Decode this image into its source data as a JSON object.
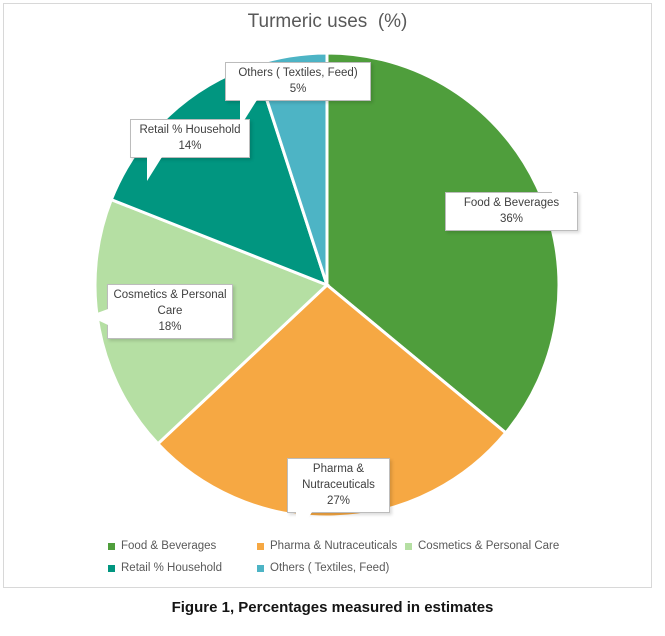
{
  "chart": {
    "title": "Turmeric uses  (%)"
  },
  "chart_data": {
    "type": "pie",
    "title": "Turmeric uses  (%)",
    "categories": [
      "Food & Beverages",
      "Pharma & Nutraceuticals",
      "Cosmetics & Personal Care",
      "Retail % Household",
      "Others ( Textiles, Feed)"
    ],
    "values": [
      36,
      27,
      18,
      14,
      5
    ],
    "unit": "%",
    "colors": [
      "#4f9e3c",
      "#f6a843",
      "#b5dfa3",
      "#019680",
      "#4db4c5"
    ],
    "start_angle_deg": 0,
    "direction": "clockwise",
    "data_labels": "category-and-percent-callouts",
    "legend_position": "bottom",
    "label_text_color": "#404040",
    "title_text_color": "#595959"
  },
  "caption": "Figure 1, Percentages measured in estimates"
}
